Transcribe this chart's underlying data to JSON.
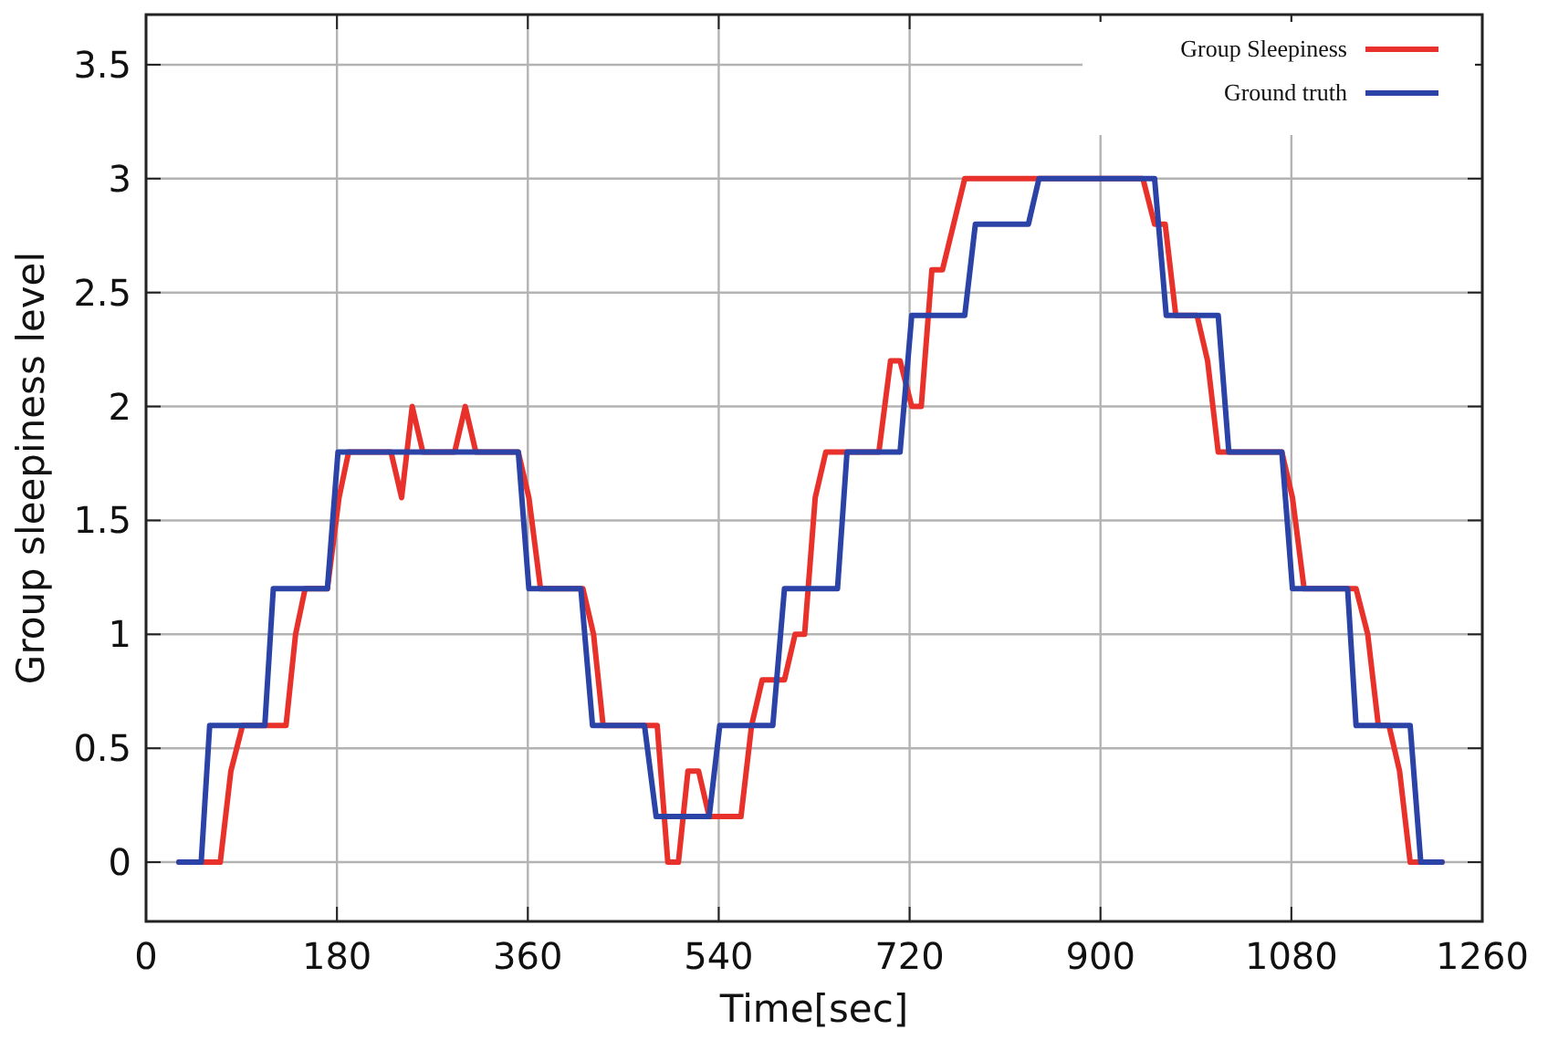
{
  "chart_data": {
    "type": "line",
    "xlabel": "Time[sec]",
    "ylabel": "Group sleepiness level",
    "xlim": [
      0,
      1260
    ],
    "xticks": [
      0,
      180,
      360,
      540,
      720,
      900,
      1080,
      1260
    ],
    "ylim": [
      -0.26,
      3.72
    ],
    "yticks": [
      0,
      0.5,
      1,
      1.5,
      2,
      2.5,
      3,
      3.5
    ],
    "grid": true,
    "legend": "top right",
    "line_style": "solid",
    "marker": "none",
    "series": [
      {
        "name": "Group Sleepiness",
        "color": "#e8312a",
        "x": [
          31,
          70,
          80,
          91,
          132,
          141,
          150,
          171,
          182,
          191,
          231,
          241,
          251,
          261,
          291,
          301,
          311,
          351,
          361,
          372,
          412,
          422,
          431,
          482,
          492,
          502,
          511,
          521,
          531,
          561,
          571,
          581,
          602,
          612,
          621,
          631,
          641,
          691,
          702,
          711,
          722,
          731,
          741,
          751,
          772,
          940,
          951,
          961,
          971,
          991,
          1001,
          1011,
          1071,
          1081,
          1092,
          1141,
          1152,
          1162,
          1172,
          1182,
          1192,
          1222
        ],
        "values": [
          0,
          0,
          0.4,
          0.6,
          0.6,
          1.0,
          1.2,
          1.2,
          1.6,
          1.8,
          1.8,
          1.6,
          2.0,
          1.8,
          1.8,
          2.0,
          1.8,
          1.8,
          1.6,
          1.2,
          1.2,
          1.0,
          0.6,
          0.6,
          0,
          0,
          0.4,
          0.4,
          0.2,
          0.2,
          0.6,
          0.8,
          0.8,
          1.0,
          1.0,
          1.6,
          1.8,
          1.8,
          2.2,
          2.2,
          2.0,
          2.0,
          2.6,
          2.6,
          3,
          3,
          2.8,
          2.8,
          2.4,
          2.4,
          2.2,
          1.8,
          1.8,
          1.6,
          1.2,
          1.2,
          1.0,
          0.6,
          0.6,
          0.4,
          0,
          0
        ]
      },
      {
        "name": "Ground truth",
        "color": "#2b43a6",
        "x": [
          31,
          52,
          60,
          112,
          120,
          171,
          181,
          351,
          361,
          410,
          421,
          470,
          481,
          531,
          541,
          591,
          602,
          652,
          661,
          711,
          722,
          772,
          782,
          832,
          842,
          951,
          962,
          1011,
          1021,
          1071,
          1081,
          1133,
          1141,
          1192,
          1202,
          1222
        ],
        "values": [
          0,
          0,
          0.6,
          0.6,
          1.2,
          1.2,
          1.8,
          1.8,
          1.2,
          1.2,
          0.6,
          0.6,
          0.2,
          0.2,
          0.6,
          0.6,
          1.2,
          1.2,
          1.8,
          1.8,
          2.4,
          2.4,
          2.8,
          2.8,
          3,
          3,
          2.4,
          2.4,
          1.8,
          1.8,
          1.2,
          1.2,
          0.6,
          0.6,
          0,
          0
        ]
      }
    ]
  }
}
